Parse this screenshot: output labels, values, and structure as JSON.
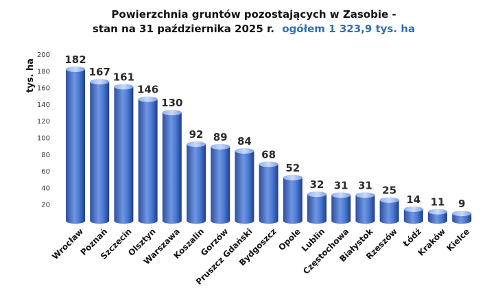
{
  "chart_data": {
    "type": "bar",
    "title_line1": "Powierzchnia gruntów pozostających w Zasobie -",
    "title_line2": "stan na 31 października 2025 r.",
    "title_accent": "ogółem 1 323,9 tys. ha",
    "ylabel": "tys. ha",
    "xlabel": "",
    "ylim": [
      0,
      200
    ],
    "yticks": [
      20,
      40,
      60,
      80,
      100,
      120,
      140,
      160,
      180,
      200
    ],
    "grid": false,
    "categories": [
      "Wrocław",
      "Poznań",
      "Szczecin",
      "Olsztyn",
      "Warszawa",
      "Koszalin",
      "Gorzów",
      "Pruszcz Gdański",
      "Bydgoszcz",
      "Opole",
      "Lublin",
      "Częstochowa",
      "Białystok",
      "Rzeszów",
      "Łódź",
      "Kraków",
      "Kielce"
    ],
    "values": [
      182,
      167,
      161,
      146,
      130,
      92,
      89,
      84,
      68,
      52,
      32,
      31,
      31,
      25,
      14,
      11,
      9
    ],
    "bar_color": "#3f6fcf",
    "bar_color_light": "#a9c3f2",
    "accent_color": "#2f6fb5"
  }
}
